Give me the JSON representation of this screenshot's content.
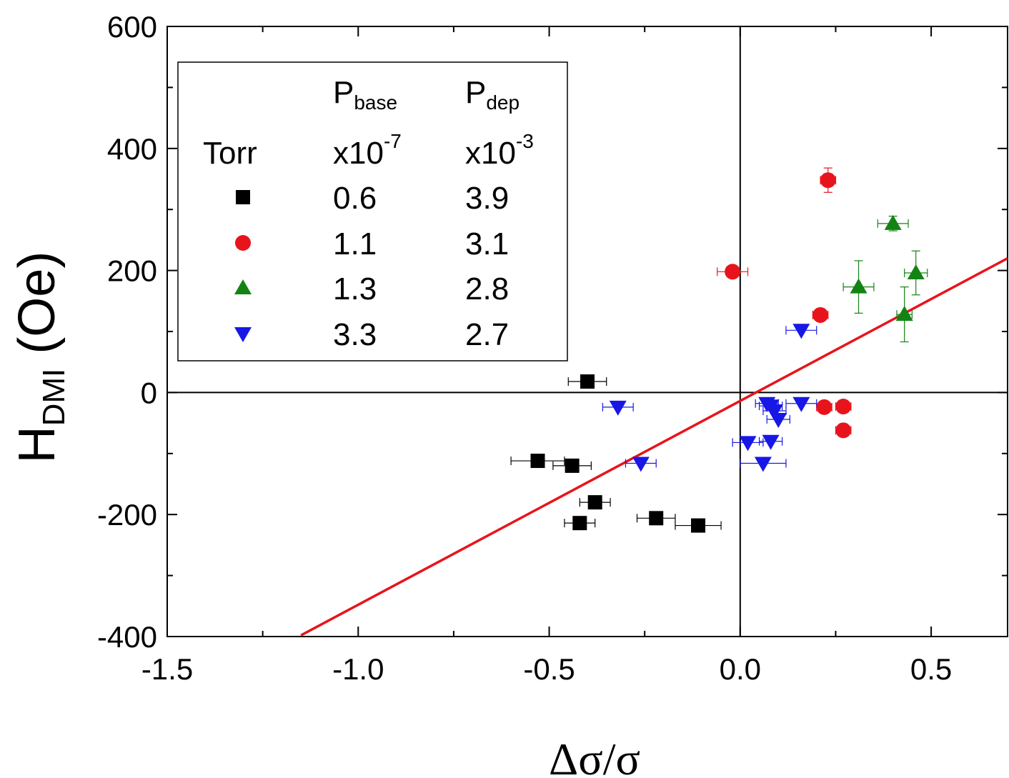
{
  "chart_data": {
    "type": "scatter",
    "xlabel": "Δσ/σ",
    "ylabel": {
      "main": "H",
      "subscript": "DMI",
      "unit": " (Oe)"
    },
    "xlim": [
      -1.5,
      0.7
    ],
    "ylim": [
      -400,
      600
    ],
    "xticks": [
      -1.5,
      -1.0,
      -0.5,
      0.0,
      0.5
    ],
    "xtick_labels": [
      "-1.5",
      "-1.0",
      "-0.5",
      "0.0",
      "0.5"
    ],
    "yticks": [
      -400,
      -200,
      0,
      200,
      400,
      600
    ],
    "ytick_labels": [
      "-400",
      "-200",
      "0",
      "200",
      "400",
      "600"
    ],
    "reference_lines": {
      "x": 0,
      "y": 0
    },
    "fit_line": {
      "color": "#e8141c",
      "x": [
        -1.15,
        0.7
      ],
      "y": [
        -398,
        220
      ]
    },
    "legend": {
      "placement": "top-left",
      "header": {
        "col2": {
          "main": "P",
          "sub": "base"
        },
        "col3": {
          "main": "P",
          "sub": "dep"
        }
      },
      "units_row": {
        "col1": "Torr",
        "col2": {
          "main": "x10",
          "sup": "-7"
        },
        "col3": {
          "main": "x10",
          "sup": "-3"
        }
      }
    },
    "series": [
      {
        "name": "0.6",
        "p_base": "0.6",
        "p_dep": "3.9",
        "marker": "square",
        "color": "#000000",
        "points": [
          {
            "x": -0.4,
            "y": 18,
            "xerr": 0.05,
            "yerr": 0
          },
          {
            "x": -0.53,
            "y": -112,
            "xerr": 0.07,
            "yerr": 0
          },
          {
            "x": -0.44,
            "y": -120,
            "xerr": 0.05,
            "yerr": 0
          },
          {
            "x": -0.38,
            "y": -180,
            "xerr": 0.04,
            "yerr": 0
          },
          {
            "x": -0.42,
            "y": -214,
            "xerr": 0.04,
            "yerr": 0
          },
          {
            "x": -0.22,
            "y": -206,
            "xerr": 0.05,
            "yerr": 0
          },
          {
            "x": -0.11,
            "y": -218,
            "xerr": 0.06,
            "yerr": 0
          }
        ]
      },
      {
        "name": "1.1",
        "p_base": "1.1",
        "p_dep": "3.1",
        "marker": "circle",
        "color": "#e8141c",
        "points": [
          {
            "x": 0.23,
            "y": 348,
            "xerr": 0.02,
            "yerr": 20
          },
          {
            "x": -0.02,
            "y": 198,
            "xerr": 0.04,
            "yerr": 0
          },
          {
            "x": 0.21,
            "y": 127,
            "xerr": 0.02,
            "yerr": 0
          },
          {
            "x": 0.22,
            "y": -24,
            "xerr": 0.02,
            "yerr": 0
          },
          {
            "x": 0.27,
            "y": -23,
            "xerr": 0.02,
            "yerr": 0
          },
          {
            "x": 0.27,
            "y": -62,
            "xerr": 0.02,
            "yerr": 0
          }
        ]
      },
      {
        "name": "1.3",
        "p_base": "1.3",
        "p_dep": "2.8",
        "marker": "triangle-up",
        "color": "#138313",
        "points": [
          {
            "x": 0.4,
            "y": 277,
            "xerr": 0.04,
            "yerr": 12
          },
          {
            "x": 0.31,
            "y": 173,
            "xerr": 0.04,
            "yerr": 43
          },
          {
            "x": 0.46,
            "y": 196,
            "xerr": 0.03,
            "yerr": 36
          },
          {
            "x": 0.43,
            "y": 128,
            "xerr": 0.02,
            "yerr": 45
          }
        ]
      },
      {
        "name": "3.3",
        "p_base": "3.3",
        "p_dep": "2.7",
        "marker": "triangle-down",
        "color": "#1717e6",
        "points": [
          {
            "x": 0.16,
            "y": 102,
            "xerr": 0.04,
            "yerr": 0
          },
          {
            "x": -0.32,
            "y": -24,
            "xerr": 0.04,
            "yerr": 0
          },
          {
            "x": -0.26,
            "y": -116,
            "xerr": 0.04,
            "yerr": 0
          },
          {
            "x": 0.07,
            "y": -18,
            "xerr": 0.03,
            "yerr": 0
          },
          {
            "x": 0.08,
            "y": -22,
            "xerr": 0.03,
            "yerr": 0
          },
          {
            "x": 0.09,
            "y": -30,
            "xerr": 0.03,
            "yerr": 0
          },
          {
            "x": 0.1,
            "y": -44,
            "xerr": 0.03,
            "yerr": 0
          },
          {
            "x": 0.16,
            "y": -18,
            "xerr": 0.04,
            "yerr": 0
          },
          {
            "x": 0.02,
            "y": -82,
            "xerr": 0.04,
            "yerr": 0
          },
          {
            "x": 0.08,
            "y": -80,
            "xerr": 0.03,
            "yerr": 0
          },
          {
            "x": 0.06,
            "y": -116,
            "xerr": 0.06,
            "yerr": 0
          }
        ]
      }
    ]
  }
}
